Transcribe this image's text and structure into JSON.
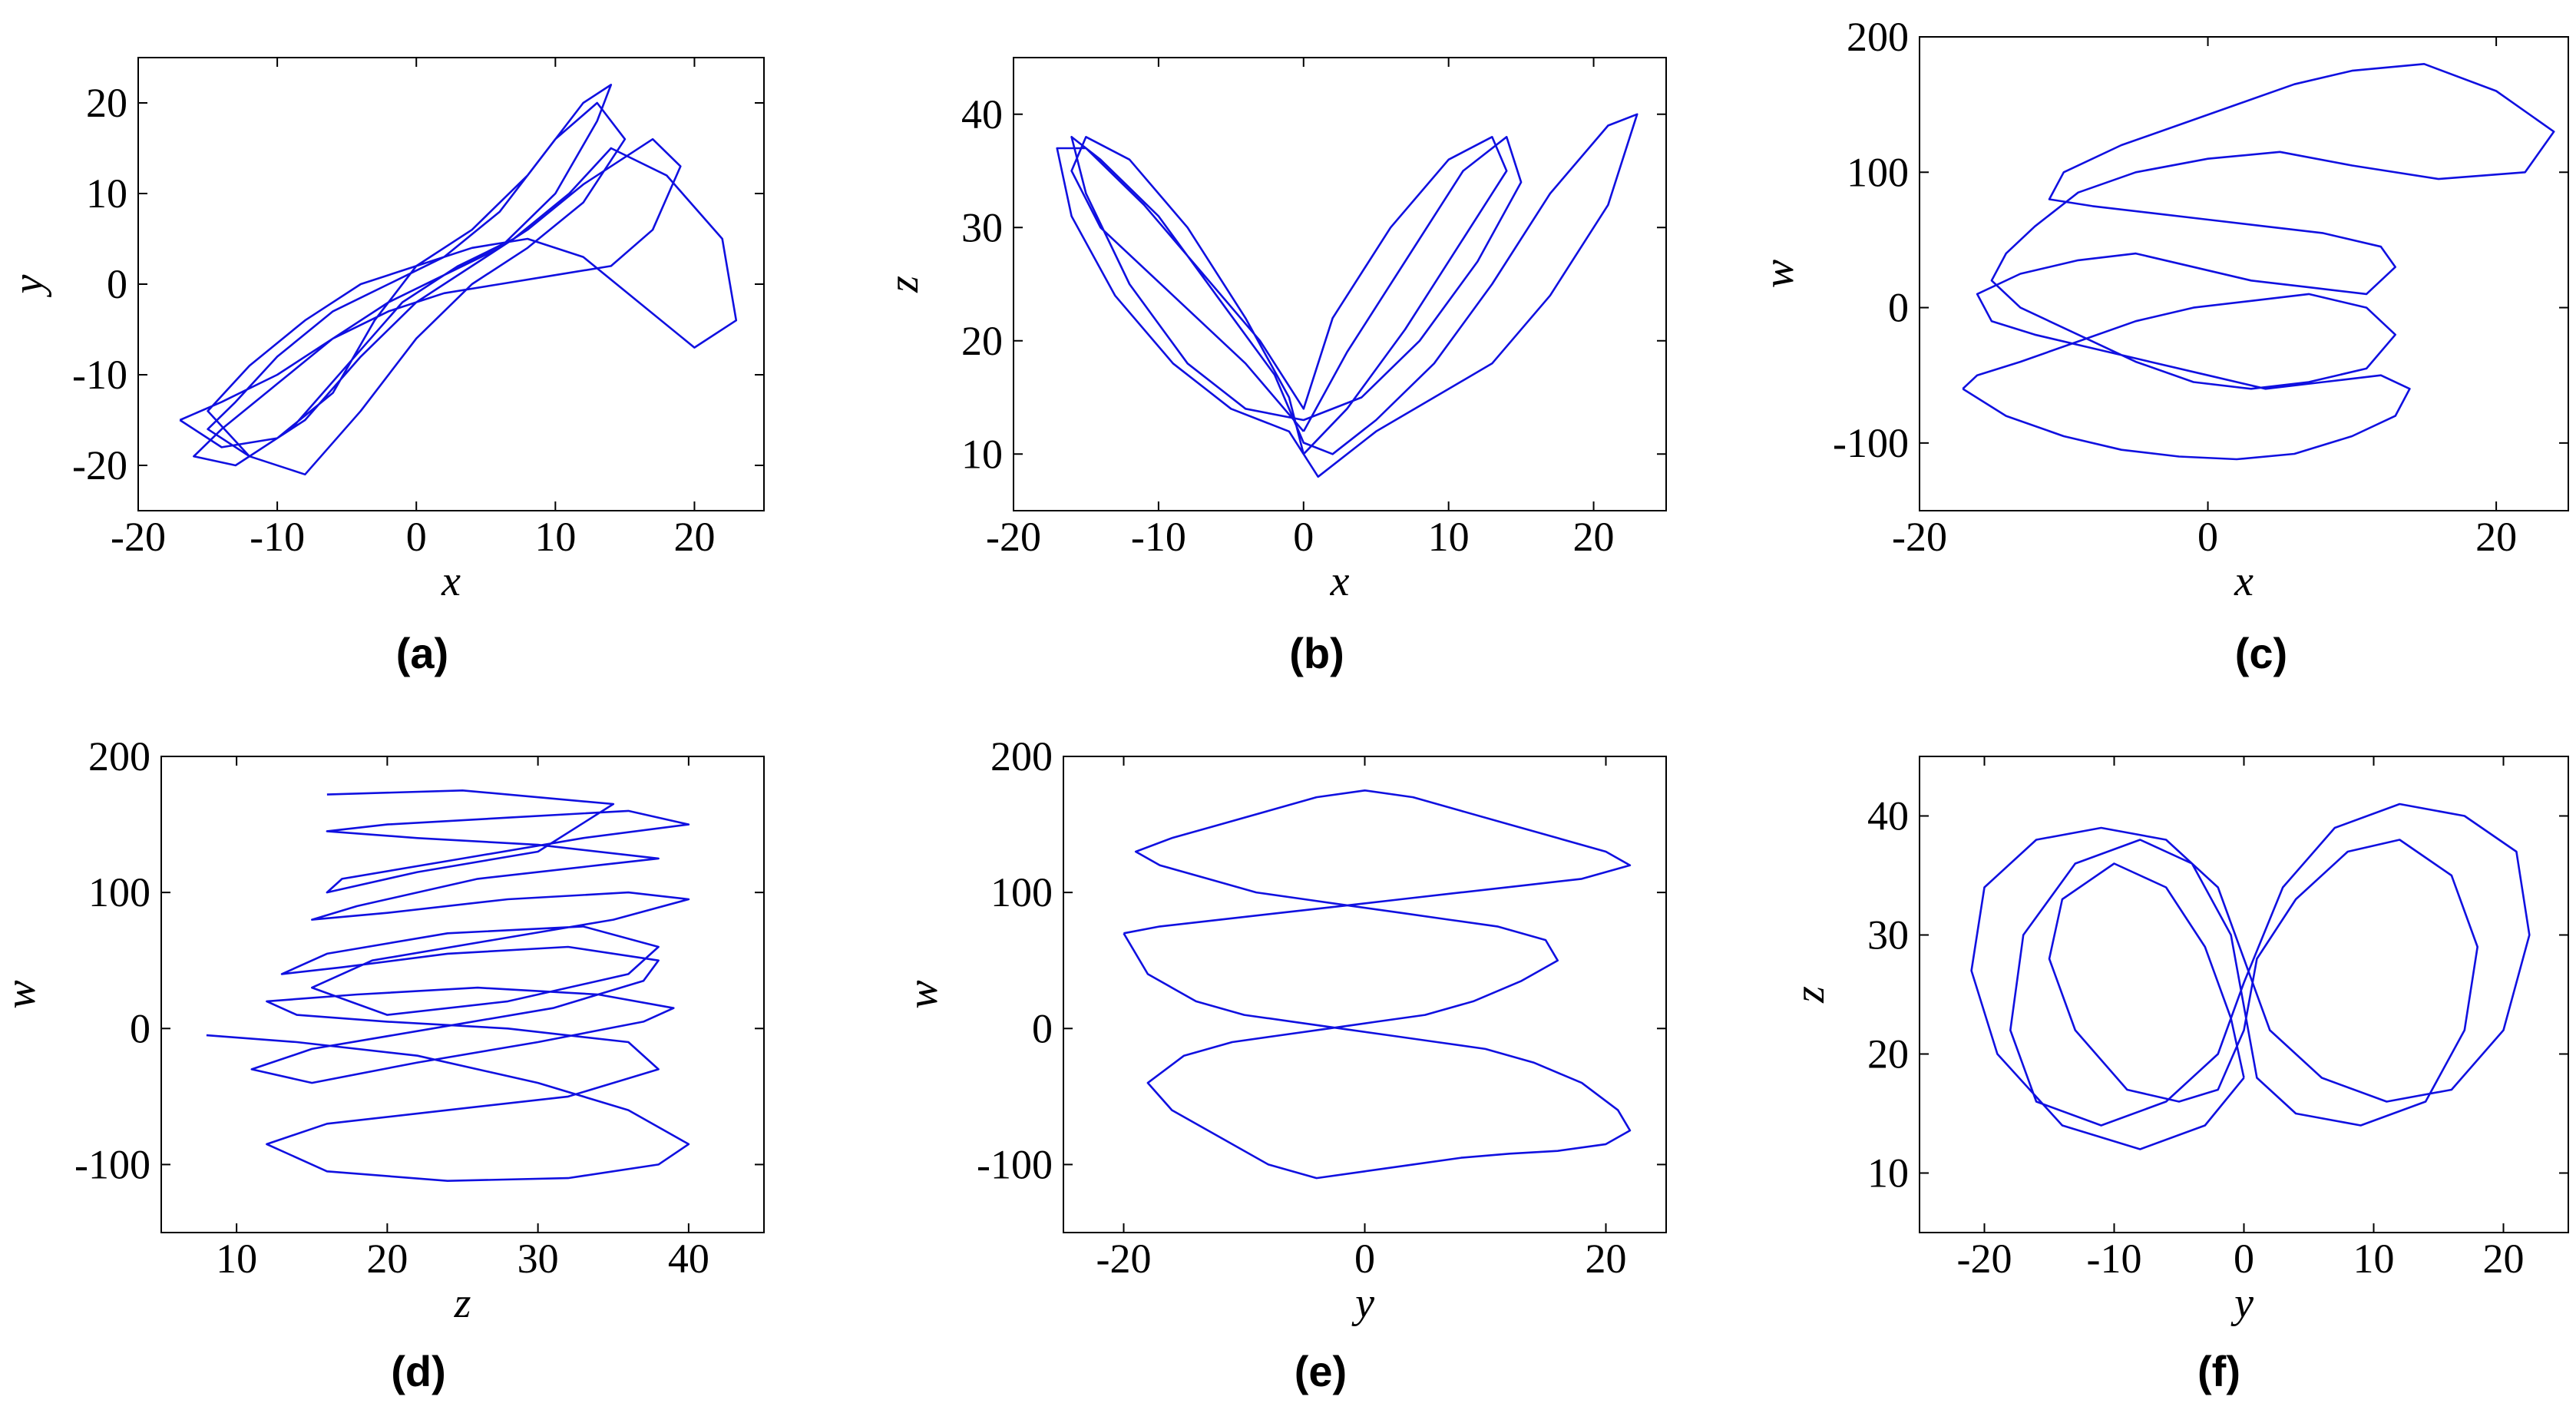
{
  "figure": {
    "line_color": "#1010e0",
    "frame_color": "#000000"
  },
  "chart_data": [
    {
      "id": "a",
      "caption": "(a)",
      "type": "line",
      "xlabel": "x",
      "ylabel": "y",
      "xlim": [
        -20,
        25
      ],
      "ylim": [
        -25,
        25
      ],
      "xticks": [
        -20,
        -10,
        0,
        10,
        20
      ],
      "yticks": [
        -20,
        -10,
        0,
        10,
        20
      ],
      "series": [
        {
          "x": [
            -17,
            -14,
            -10,
            -6,
            -3,
            0,
            4,
            8,
            12,
            14,
            13,
            10,
            6,
            2,
            -2,
            -6,
            -10,
            -14,
            -16,
            -13,
            -9,
            -5,
            -1,
            3,
            7,
            11,
            14,
            18,
            22,
            23,
            20,
            16,
            12,
            8,
            4,
            0,
            -4,
            -8,
            -12,
            -15,
            -12,
            -8,
            -4,
            0,
            4,
            8,
            12,
            15,
            13,
            10,
            6,
            2,
            -2,
            -6,
            -10,
            -13,
            -15,
            -12,
            -8,
            -4,
            0,
            4,
            8,
            12,
            17,
            19,
            17,
            14,
            10,
            6,
            2,
            -2,
            -6,
            -10,
            -14,
            -17
          ],
          "y": [
            -15,
            -18,
            -17,
            -12,
            -4,
            2,
            6,
            12,
            20,
            22,
            18,
            10,
            4,
            1,
            -2,
            -6,
            -11,
            -16,
            -19,
            -20,
            -16,
            -9,
            -2,
            2,
            5,
            10,
            15,
            12,
            5,
            -4,
            -7,
            -2,
            3,
            5,
            4,
            2,
            0,
            -4,
            -9,
            -14,
            -19,
            -21,
            -14,
            -6,
            0,
            4,
            9,
            16,
            20,
            16,
            8,
            3,
            0,
            -3,
            -8,
            -13,
            -16,
            -19,
            -15,
            -8,
            -2,
            2,
            6,
            11,
            16,
            13,
            6,
            2,
            1,
            0,
            -1,
            -3,
            -6,
            -10,
            -13,
            -15
          ]
        }
      ]
    },
    {
      "id": "b",
      "caption": "(b)",
      "type": "line",
      "xlabel": "x",
      "ylabel": "z",
      "xlim": [
        -20,
        25
      ],
      "ylim": [
        5,
        45
      ],
      "xticks": [
        -20,
        -10,
        0,
        10,
        20
      ],
      "yticks": [
        10,
        20,
        30,
        40
      ],
      "series": [
        {
          "x": [
            0,
            -4,
            -9,
            -14,
            -16,
            -15,
            -12,
            -8,
            -4,
            -1,
            0,
            3,
            7,
            11,
            14,
            13,
            10,
            6,
            2,
            0,
            -3,
            -7,
            -11,
            -15,
            -17,
            -16,
            -13,
            -9,
            -5,
            -1,
            1,
            5,
            9,
            13,
            17,
            21,
            23,
            21,
            17,
            13,
            9,
            5,
            2,
            0,
            -2,
            -6,
            -10,
            -14,
            -16,
            -15,
            -12,
            -8,
            -4,
            0,
            4,
            8,
            12,
            15,
            14,
            11,
            7,
            3,
            0
          ],
          "y": [
            12,
            18,
            24,
            30,
            35,
            38,
            36,
            30,
            22,
            15,
            10,
            14,
            21,
            29,
            35,
            38,
            36,
            30,
            22,
            14,
            20,
            26,
            32,
            37,
            37,
            31,
            24,
            18,
            14,
            12,
            8,
            12,
            15,
            18,
            24,
            32,
            40,
            39,
            33,
            25,
            18,
            13,
            10,
            11,
            17,
            24,
            31,
            36,
            38,
            33,
            25,
            18,
            14,
            13,
            15,
            20,
            27,
            34,
            38,
            35,
            27,
            19,
            12
          ]
        }
      ]
    },
    {
      "id": "c",
      "caption": "(c)",
      "type": "line",
      "xlabel": "x",
      "ylabel": "w",
      "xlim": [
        -20,
        25
      ],
      "ylim": [
        -150,
        200
      ],
      "xticks": [
        -20,
        0,
        20
      ],
      "yticks": [
        -100,
        0,
        100,
        200
      ],
      "series": [
        {
          "x": [
            -17,
            -14,
            -10,
            -6,
            -2,
            2,
            6,
            10,
            13,
            14,
            12,
            8,
            4,
            0,
            -4,
            -8,
            -12,
            -15,
            -16,
            -13,
            -9,
            -5,
            -1,
            3,
            7,
            11,
            13,
            12,
            8,
            4,
            0,
            -4,
            -8,
            -11,
            -10,
            -6,
            -2,
            2,
            6,
            10,
            15,
            20,
            24,
            22,
            16,
            10,
            5,
            0,
            -5,
            -9,
            -12,
            -14,
            -15,
            -13,
            -9,
            -5,
            -1,
            3,
            7,
            11,
            13,
            11,
            7,
            3,
            -1,
            -5,
            -9,
            -13,
            -16,
            -17
          ],
          "y": [
            -60,
            -80,
            -95,
            -105,
            -110,
            -112,
            -108,
            -95,
            -80,
            -60,
            -50,
            -55,
            -60,
            -50,
            -40,
            -30,
            -20,
            -10,
            10,
            25,
            35,
            40,
            30,
            20,
            15,
            10,
            30,
            45,
            55,
            60,
            65,
            70,
            75,
            80,
            100,
            120,
            135,
            150,
            165,
            175,
            180,
            160,
            130,
            100,
            95,
            105,
            115,
            110,
            100,
            85,
            60,
            40,
            20,
            0,
            -20,
            -40,
            -55,
            -60,
            -55,
            -45,
            -20,
            0,
            10,
            5,
            0,
            -10,
            -25,
            -40,
            -50,
            -60
          ]
        }
      ]
    },
    {
      "id": "d",
      "caption": "(d)",
      "type": "line",
      "xlabel": "z",
      "ylabel": "w",
      "xlim": [
        5,
        45
      ],
      "ylim": [
        -150,
        200
      ],
      "xticks": [
        10,
        20,
        30,
        40
      ],
      "yticks": [
        -100,
        0,
        100,
        200
      ],
      "series": [
        {
          "x": [
            8,
            14,
            22,
            30,
            36,
            40,
            38,
            32,
            24,
            16,
            12,
            16,
            24,
            32,
            38,
            36,
            28,
            20,
            14,
            12,
            18,
            26,
            34,
            39,
            37,
            30,
            22,
            15,
            11,
            15,
            23,
            31,
            37,
            38,
            32,
            24,
            17,
            13,
            16,
            24,
            33,
            38,
            36,
            28,
            20,
            15,
            19,
            27,
            35,
            40,
            36,
            28,
            20,
            15,
            18,
            26,
            34,
            38,
            30,
            22,
            16,
            20,
            28,
            36,
            40,
            33,
            25,
            17,
            16,
            22,
            30,
            35,
            25,
            16
          ],
          "y": [
            -5,
            -10,
            -20,
            -40,
            -60,
            -85,
            -100,
            -110,
            -112,
            -105,
            -85,
            -70,
            -60,
            -50,
            -30,
            -10,
            0,
            5,
            10,
            20,
            25,
            30,
            25,
            15,
            5,
            -10,
            -25,
            -40,
            -30,
            -15,
            0,
            15,
            35,
            50,
            60,
            55,
            45,
            40,
            55,
            70,
            75,
            60,
            40,
            20,
            10,
            30,
            50,
            65,
            80,
            95,
            100,
            95,
            85,
            80,
            90,
            110,
            120,
            125,
            135,
            140,
            145,
            150,
            155,
            160,
            150,
            140,
            125,
            110,
            100,
            115,
            130,
            165,
            175,
            172
          ]
        }
      ]
    },
    {
      "id": "e",
      "caption": "(e)",
      "type": "line",
      "xlabel": "y",
      "ylabel": "w",
      "xlim": [
        -25,
        25
      ],
      "ylim": [
        -150,
        200
      ],
      "xticks": [
        -20,
        0,
        20
      ],
      "yticks": [
        -100,
        0,
        100,
        200
      ],
      "series": [
        {
          "x": [
            -20,
            -18,
            -14,
            -10,
            -6,
            -2,
            2,
            6,
            10,
            14,
            18,
            21,
            22,
            20,
            16,
            12,
            8,
            4,
            0,
            -4,
            -8,
            -12,
            -16,
            -18,
            -15,
            -11,
            -7,
            -3,
            1,
            5,
            9,
            13,
            16,
            15,
            11,
            7,
            3,
            -1,
            -5,
            -9,
            -13,
            -17,
            -19,
            -16,
            -12,
            -8,
            -4,
            0,
            4,
            8,
            12,
            16,
            20,
            22,
            18,
            13,
            8,
            3,
            -2,
            -7,
            -12,
            -17,
            -20
          ],
          "y": [
            70,
            40,
            20,
            10,
            5,
            0,
            -5,
            -10,
            -15,
            -25,
            -40,
            -60,
            -75,
            -85,
            -90,
            -92,
            -95,
            -100,
            -105,
            -110,
            -100,
            -80,
            -60,
            -40,
            -20,
            -10,
            -5,
            0,
            5,
            10,
            20,
            35,
            50,
            65,
            75,
            80,
            85,
            90,
            95,
            100,
            110,
            120,
            130,
            140,
            150,
            160,
            170,
            175,
            170,
            160,
            150,
            140,
            130,
            120,
            110,
            105,
            100,
            95,
            90,
            85,
            80,
            75,
            70
          ]
        }
      ]
    },
    {
      "id": "f",
      "caption": "(f)",
      "type": "line",
      "xlabel": "y",
      "ylabel": "z",
      "xlim": [
        -25,
        25
      ],
      "ylim": [
        5,
        45
      ],
      "xticks": [
        -20,
        -10,
        0,
        10,
        20
      ],
      "yticks": [
        10,
        20,
        30,
        40
      ],
      "series": [
        {
          "x": [
            0,
            -3,
            -8,
            -14,
            -19,
            -21,
            -20,
            -16,
            -11,
            -6,
            -2,
            0,
            2,
            6,
            11,
            16,
            20,
            22,
            21,
            17,
            12,
            7,
            3,
            0,
            -2,
            -6,
            -11,
            -16,
            -18,
            -17,
            -13,
            -8,
            -4,
            -1,
            0,
            1,
            4,
            9,
            14,
            17,
            18,
            16,
            12,
            8,
            4,
            1,
            0,
            -2,
            -5,
            -9,
            -13,
            -15,
            -14,
            -10,
            -6,
            -3,
            -1,
            0
          ],
          "y": [
            18,
            14,
            12,
            14,
            20,
            27,
            34,
            38,
            39,
            38,
            34,
            28,
            22,
            18,
            16,
            17,
            22,
            30,
            37,
            40,
            41,
            39,
            34,
            26,
            20,
            16,
            14,
            16,
            22,
            30,
            36,
            38,
            36,
            30,
            24,
            18,
            15,
            14,
            16,
            22,
            29,
            35,
            38,
            37,
            33,
            28,
            22,
            17,
            16,
            17,
            22,
            28,
            33,
            36,
            34,
            29,
            23,
            18
          ]
        }
      ]
    }
  ]
}
